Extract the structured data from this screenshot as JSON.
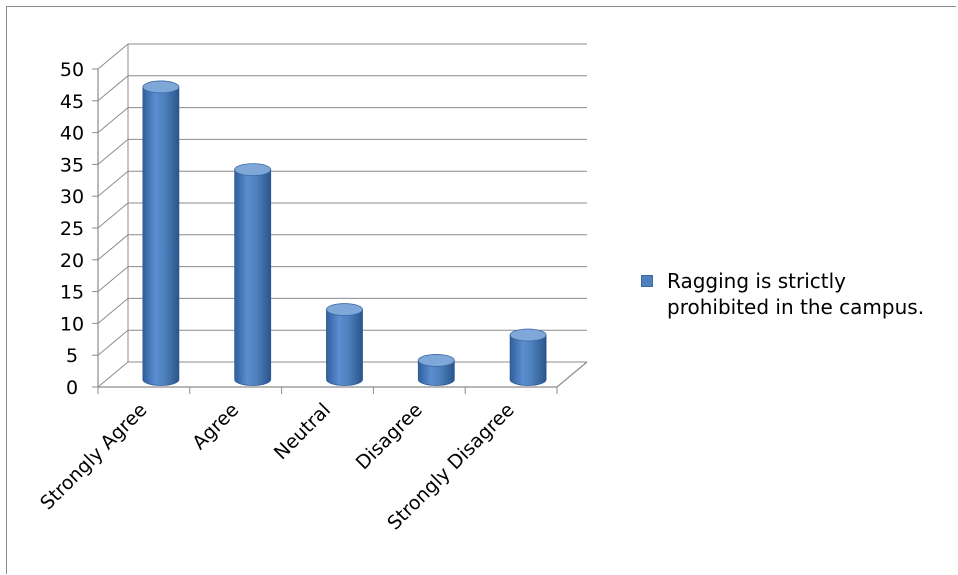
{
  "chart_data": {
    "type": "bar",
    "style": "3d-cylinder",
    "categories": [
      "Strongly Agree",
      "Agree",
      "Neutral",
      "Disagree",
      "Strongly Disagree"
    ],
    "series": [
      {
        "name": "Ragging is strictly\nprohibited in the campus.",
        "values": [
          46,
          33,
          11,
          3,
          7
        ]
      }
    ],
    "ylim": [
      0,
      50
    ],
    "yticks": [
      0,
      5,
      10,
      15,
      20,
      25,
      30,
      35,
      40,
      45,
      50
    ],
    "grid": true,
    "legend_position": "right",
    "colors": {
      "bar": "#4f81bd",
      "bar_dark": "#2c5a94",
      "bar_light": "#7fa7d8",
      "grid": "#8c8c8c"
    }
  }
}
